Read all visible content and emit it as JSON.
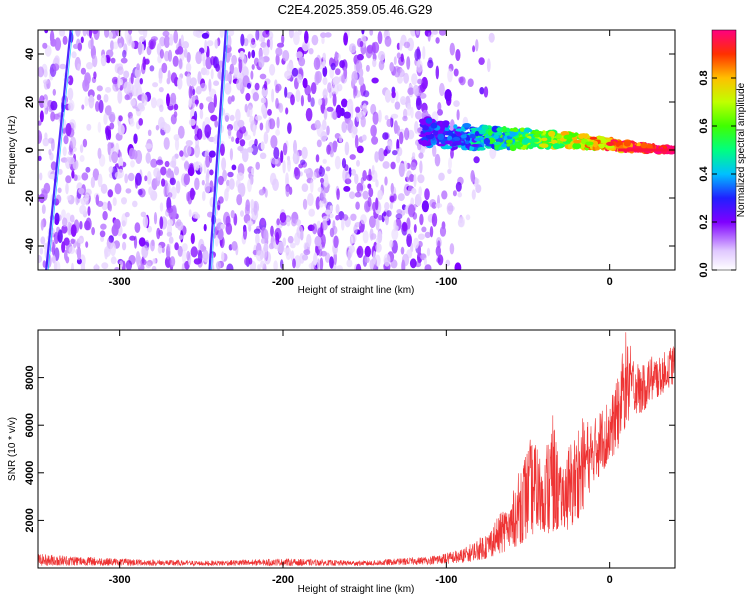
{
  "title": "C2E4.2025.359.05.46.G29",
  "spectrogram": {
    "chart_data": {
      "type": "heatmap",
      "xlabel": "Height of straight line (km)",
      "ylabel": "Frequency (Hz)",
      "xlim": [
        -350,
        40
      ],
      "ylim": [
        -50,
        50
      ],
      "xticks": [
        -300,
        -200,
        -100,
        0
      ],
      "yticks": [
        -40,
        -20,
        0,
        20,
        40
      ],
      "colorbar": {
        "label": "Normalized spectral amplitude",
        "range": [
          0,
          1
        ],
        "ticks": [
          0.0,
          0.2,
          0.4,
          0.6,
          0.8
        ],
        "tick_labels": [
          "0.0",
          "0.2",
          "0.4",
          "0.6",
          "0.8"
        ]
      },
      "features": [
        {
          "name": "signal-trace",
          "description": "high-amplitude line near 0 Hz converging from ~8 Hz at -110 km to 0 Hz at 40 km"
        },
        {
          "name": "noise-streak-1",
          "x_range": [
            -345,
            -330
          ],
          "y_range": [
            -50,
            50
          ]
        },
        {
          "name": "noise-streak-2",
          "x_range": [
            -245,
            -235
          ],
          "y_range": [
            -50,
            50
          ]
        }
      ]
    }
  },
  "snr": {
    "chart_data": {
      "type": "line",
      "xlabel": "Height of straight line (km)",
      "ylabel": "SNR (10 * v/v)",
      "xlim": [
        -350,
        40
      ],
      "ylim": [
        0,
        10000
      ],
      "xticks": [
        -300,
        -200,
        -100,
        0
      ],
      "yticks": [
        2000,
        4000,
        6000,
        8000
      ],
      "series": [
        {
          "name": "SNR",
          "color": "#ee3333",
          "envelope_x": [
            -350,
            -300,
            -250,
            -200,
            -150,
            -110,
            -90,
            -75,
            -60,
            -50,
            -45,
            -40,
            -35,
            -30,
            -25,
            -20,
            -15,
            -10,
            -5,
            0,
            5,
            10,
            15,
            20,
            25,
            30,
            35,
            40
          ],
          "envelope_min": [
            100,
            100,
            100,
            100,
            100,
            150,
            200,
            400,
            800,
            1200,
            1500,
            1500,
            1300,
            1800,
            1500,
            2000,
            2500,
            3500,
            4000,
            4500,
            5000,
            6000,
            6500,
            6500,
            7000,
            7200,
            7500,
            7800
          ],
          "envelope_max": [
            600,
            400,
            300,
            400,
            300,
            500,
            800,
            1500,
            3000,
            5500,
            5200,
            4800,
            6500,
            4200,
            5200,
            6000,
            6500,
            6200,
            7000,
            7000,
            8000,
            10000,
            8800,
            8500,
            9000,
            8800,
            9200,
            9500
          ]
        }
      ]
    }
  }
}
